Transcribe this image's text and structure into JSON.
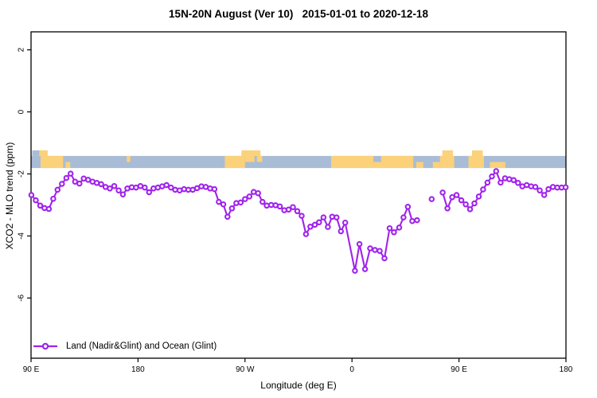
{
  "chart_data": {
    "type": "line",
    "title": "15N-20N August (Ver 10)   2015-01-01 to 2020-12-18",
    "xlabel": "Longitude (deg E)",
    "ylabel": "XCO2 - MLO trend (ppm)",
    "xlim": [
      90,
      540
    ],
    "ylim": [
      -7.94,
      2.58
    ],
    "grid": false,
    "legend_position": "bottom-left",
    "x_ticks": [
      {
        "value": 90,
        "label": "90 E"
      },
      {
        "value": 180,
        "label": "180"
      },
      {
        "value": 270,
        "label": "90 W"
      },
      {
        "value": 360,
        "label": "0"
      },
      {
        "value": 450,
        "label": "90 E"
      },
      {
        "value": 540,
        "label": "180"
      }
    ],
    "y_ticks": [
      {
        "value": 2,
        "label": "2"
      },
      {
        "value": 0,
        "label": "0"
      },
      {
        "value": -2,
        "label": "-2"
      },
      {
        "value": -4,
        "label": "-4"
      },
      {
        "value": -6,
        "label": "-6"
      }
    ],
    "series": [
      {
        "name": "Land (Nadir&Glint) and Ocean (Glint)",
        "color": "#A023EC",
        "marker": "open-circle",
        "segments": [
          {
            "x": [
              90.3,
              94.0,
              97.7,
              101.3,
              105.0,
              108.7,
              112.3,
              116.0,
              119.7,
              123.3,
              127.0,
              130.7,
              134.3,
              138.0,
              141.7,
              145.3,
              149.0,
              152.7,
              156.3,
              160.0,
              163.7,
              167.3,
              171.0,
              174.7,
              178.3,
              182.0,
              185.7,
              189.3,
              193.0,
              196.7,
              200.3,
              204.0,
              207.7,
              211.3,
              215.0,
              218.7,
              222.3,
              226.0,
              229.7,
              233.3,
              237.0,
              240.7,
              244.3,
              248.0,
              251.7,
              255.3,
              259.0,
              262.7,
              266.3,
              270.0,
              273.7,
              277.3,
              281.0,
              284.7,
              288.3,
              292.0,
              295.7,
              299.3,
              303.0,
              306.7,
              310.3,
              314.0,
              317.7,
              321.3,
              325.0,
              328.7,
              332.3,
              336.0,
              339.7,
              343.3,
              347.0,
              350.7,
              354.3,
              362.5,
              366.3,
              371.0,
              375.3,
              379.3,
              383.3,
              387.3,
              391.7,
              395.3,
              399.7,
              403.3,
              407.0,
              410.7,
              414.7
            ],
            "y": [
              -2.68,
              -2.85,
              -3.02,
              -3.1,
              -3.13,
              -2.8,
              -2.51,
              -2.32,
              -2.13,
              -1.99,
              -2.25,
              -2.31,
              -2.15,
              -2.19,
              -2.25,
              -2.29,
              -2.33,
              -2.42,
              -2.47,
              -2.39,
              -2.53,
              -2.66,
              -2.47,
              -2.43,
              -2.44,
              -2.39,
              -2.44,
              -2.59,
              -2.47,
              -2.44,
              -2.4,
              -2.36,
              -2.44,
              -2.51,
              -2.53,
              -2.49,
              -2.51,
              -2.51,
              -2.46,
              -2.4,
              -2.42,
              -2.47,
              -2.49,
              -2.9,
              -2.98,
              -3.38,
              -3.11,
              -2.94,
              -2.92,
              -2.81,
              -2.73,
              -2.58,
              -2.62,
              -2.9,
              -3.02,
              -3.0,
              -3.01,
              -3.05,
              -3.17,
              -3.15,
              -3.07,
              -3.2,
              -3.35,
              -3.94,
              -3.7,
              -3.64,
              -3.56,
              -3.4,
              -3.71,
              -3.38,
              -3.4,
              -3.85,
              -3.57,
              -5.12,
              -4.26,
              -5.07,
              -4.4,
              -4.45,
              -4.48,
              -4.72,
              -3.75,
              -3.88,
              -3.73,
              -3.4,
              -3.06,
              -3.52,
              -3.49
            ]
          },
          {
            "x": [
              427.0
            ],
            "y": [
              -2.81
            ],
            "isolated": true
          },
          {
            "x": [
              436.3,
              440.3,
              444.3,
              448.0,
              452.0,
              455.7,
              459.3,
              463.0,
              466.7,
              470.3,
              474.0,
              477.7,
              481.3,
              485.0,
              488.7,
              492.3,
              496.0,
              499.7,
              503.3,
              507.0,
              510.7,
              514.3,
              518.0,
              521.7,
              525.3,
              529.0,
              532.7,
              536.3,
              539.7
            ],
            "y": [
              -2.6,
              -3.11,
              -2.75,
              -2.68,
              -2.85,
              -2.98,
              -3.14,
              -2.95,
              -2.73,
              -2.5,
              -2.28,
              -2.08,
              -1.91,
              -2.28,
              -2.14,
              -2.17,
              -2.2,
              -2.29,
              -2.4,
              -2.36,
              -2.4,
              -2.42,
              -2.53,
              -2.68,
              -2.49,
              -2.42,
              -2.44,
              -2.44,
              -2.43
            ]
          }
        ]
      }
    ],
    "map_band": {
      "description": "world map strip of the 15N-20N latitude band drawn across the plot",
      "ocean_color": "#A9BCD6",
      "land_color": "#FBD17A",
      "top_value": -1.42,
      "bottom_value": -1.81,
      "bump_top_value": -1.24,
      "segments": [
        {
          "from": 91,
          "to": 97,
          "part": "above",
          "type": "ocean"
        },
        {
          "from": 97,
          "to": 104,
          "part": "above",
          "type": "land"
        },
        {
          "from": 98,
          "to": 117,
          "part": "full",
          "type": "land"
        },
        {
          "from": 119,
          "to": 123,
          "part": "bottom",
          "type": "land"
        },
        {
          "from": 170.5,
          "to": 173.5,
          "part": "top",
          "type": "land"
        },
        {
          "from": 253,
          "to": 270,
          "part": "full",
          "type": "land"
        },
        {
          "from": 267,
          "to": 283,
          "part": "above",
          "type": "land"
        },
        {
          "from": 270,
          "to": 278,
          "part": "top",
          "type": "land"
        },
        {
          "from": 280,
          "to": 284.5,
          "part": "top",
          "type": "land"
        },
        {
          "from": 342.5,
          "to": 378,
          "part": "full",
          "type": "land"
        },
        {
          "from": 378,
          "to": 385,
          "part": "bottom",
          "type": "land"
        },
        {
          "from": 384.5,
          "to": 411.5,
          "part": "full",
          "type": "land"
        },
        {
          "from": 414,
          "to": 420,
          "part": "bottom",
          "type": "land"
        },
        {
          "from": 428,
          "to": 434,
          "part": "bottom",
          "type": "land"
        },
        {
          "from": 436,
          "to": 445,
          "part": "above",
          "type": "land"
        },
        {
          "from": 434,
          "to": 446,
          "part": "full",
          "type": "land"
        },
        {
          "from": 458,
          "to": 471,
          "part": "full",
          "type": "land"
        },
        {
          "from": 461,
          "to": 470,
          "part": "above",
          "type": "land"
        },
        {
          "from": 476,
          "to": 489,
          "part": "bottom",
          "type": "land"
        }
      ]
    }
  },
  "legend": {
    "label": "Land (Nadir&Glint) and Ocean (Glint)"
  },
  "frame": {
    "border_color": "#000000",
    "tick_color": "#000000",
    "background": "#ffffff"
  }
}
